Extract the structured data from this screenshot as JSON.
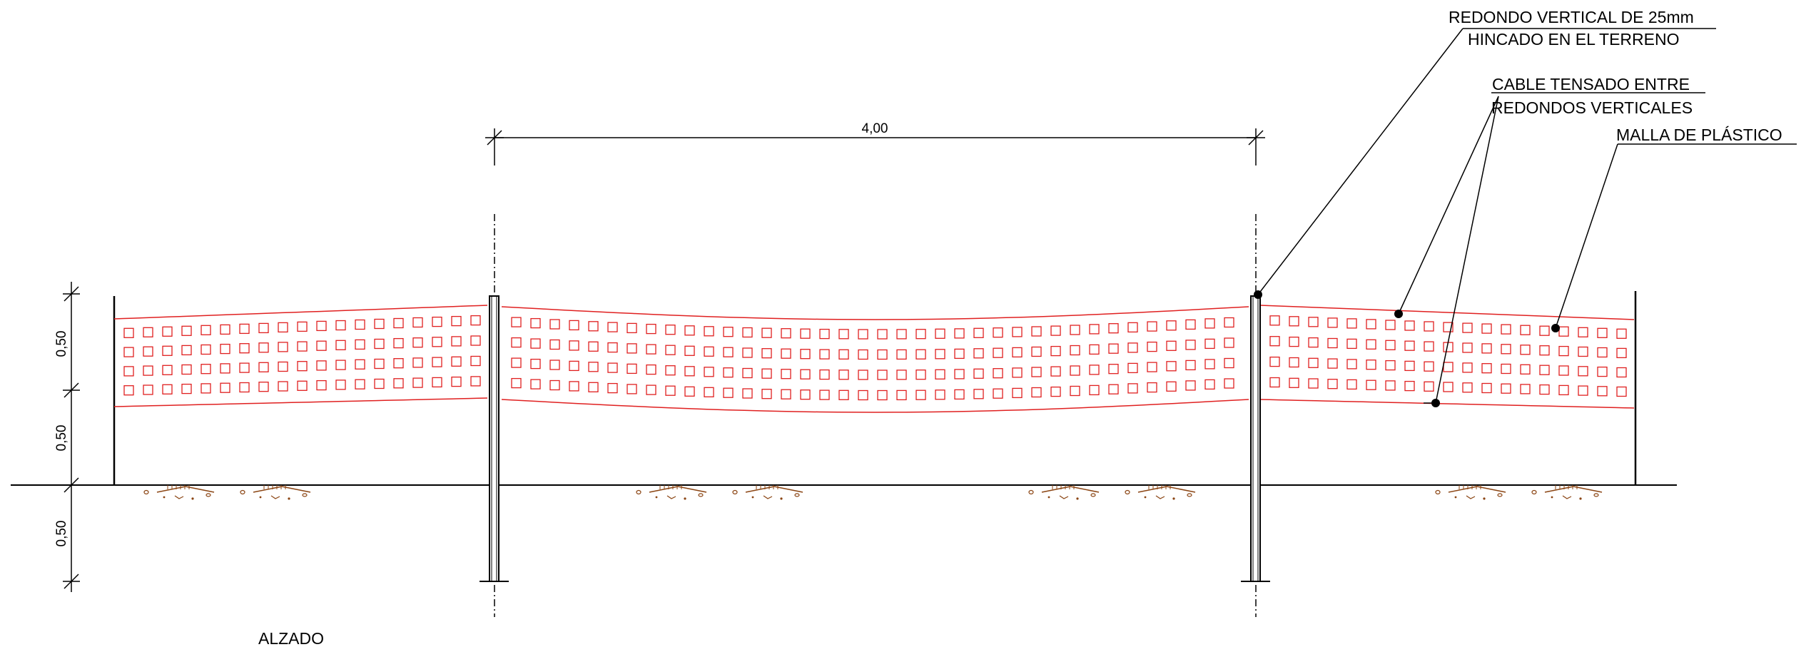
{
  "drawing": {
    "title": "ALZADO",
    "span_dimension": "4,00",
    "vertical_dimensions": [
      "0,50",
      "0,50",
      "0,50"
    ],
    "callouts": [
      {
        "id": "post",
        "lines": [
          "REDONDO VERTICAL DE 25mm",
          "HINCADO EN EL TERRENO"
        ]
      },
      {
        "id": "cable",
        "lines": [
          "CABLE TENSADO ENTRE",
          "REDONDOS VERTICALES"
        ]
      },
      {
        "id": "mesh",
        "lines": [
          "MALLA DE PLÁSTICO"
        ]
      }
    ]
  },
  "colors": {
    "mesh": "#e02020",
    "line": "#000000",
    "soil": "#8b4513"
  }
}
